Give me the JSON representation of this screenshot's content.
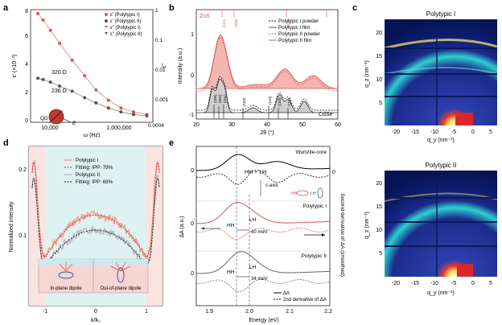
{
  "panel_labels": [
    "a",
    "b",
    "c",
    "d",
    "e"
  ],
  "a": {
    "chart_data": {
      "type": "scatter",
      "xlabel": "ω (Hz)",
      "ylabel_left": "ε′ (×10⁻³)",
      "ylabel_right": "ε″",
      "x_ticks": [
        "10,000",
        "1,000,000"
      ],
      "y_ticks": [
        "0",
        "2",
        "4",
        "6",
        "8"
      ],
      "y2_ticks": [
        "1",
        "0.1",
        "0.01",
        "0.001",
        "0.0004"
      ],
      "legend": [
        "ε′ (Polytypic I)",
        "ε′ (Polytypic II)",
        "ε″ (Polytypic I)",
        "ε″ (Polytypic II)"
      ],
      "annotations": [
        "320 D",
        "236 D",
        "QD",
        "E"
      ],
      "series": [
        {
          "name": "ε′ (Polytypic I)",
          "x": [
            6000,
            8000,
            12000,
            20000,
            40000,
            80000,
            150000,
            300000,
            600000,
            1200000,
            2500000
          ],
          "values": [
            8.4,
            7.9,
            7.1,
            6.1,
            4.8,
            3.6,
            2.5,
            1.7,
            1.1,
            0.8,
            0.6
          ]
        },
        {
          "name": "ε′ (Polytypic II)",
          "x": [
            6000,
            8000,
            12000,
            20000,
            40000,
            80000,
            150000,
            300000,
            600000,
            1200000,
            2500000
          ],
          "values": [
            3.4,
            3.3,
            3.1,
            2.8,
            2.4,
            1.9,
            1.5,
            1.1,
            0.8,
            0.6,
            0.5
          ]
        }
      ]
    }
  },
  "b": {
    "chart_data": {
      "type": "line",
      "xlabel": "2θ (°)",
      "ylabel": "Intensity (a.u.)",
      "x_ticks": [
        "20",
        "30",
        "40",
        "50",
        "60"
      ],
      "y_ticks": [
        "-1",
        "0",
        "1"
      ],
      "top_label": "ZnS",
      "bottom_label": "CdSe",
      "legend": [
        "Polytypic I powder",
        "Polytypic I film",
        "Polytypic II powder",
        "Polytypic II film"
      ],
      "peak_labels": [
        "(100)",
        "(002)",
        "(101)",
        "(102)",
        "(110)",
        "(103)",
        "(112)"
      ],
      "top_peak_labels": [
        "(111)",
        "(220)",
        "(311)"
      ]
    }
  },
  "c": {
    "top_title": "Polytypic I",
    "bottom_title": "Polytypic II",
    "ylabel": "q_z (nm⁻¹)",
    "xlabel": "q_y (nm⁻¹)",
    "y_ticks": [
      "5",
      "10",
      "15",
      "20"
    ],
    "x_ticks": [
      "-20",
      "-15",
      "-10",
      "-5",
      "0",
      "5"
    ]
  },
  "d": {
    "chart_data": {
      "type": "line",
      "xlabel": "k/k₀",
      "ylabel": "Normalized intensity",
      "x_ticks": [
        "-1",
        "0",
        "1"
      ],
      "y_ticks": [
        "0.1",
        "0.2"
      ],
      "legend": [
        "Polytypic I",
        "Fitting: IPP: 79%",
        "Polytypic II",
        "Fitting: IPP: 69%"
      ],
      "inset_labels": [
        "In-plane dipole",
        "Out-of-plane dipole"
      ]
    }
  },
  "e": {
    "chart_data": {
      "type": "line",
      "xlabel": "Energy (eV)",
      "ylabel_left": "ΔA (a.u.)",
      "ylabel_right": "Second derivative of ΔA (smoothed)",
      "x_ticks": [
        "1.9",
        "2.0",
        "2.1",
        "2.2"
      ],
      "trace_labels": [
        "Wurtzite-core",
        "Polytypic I",
        "Polytypic II"
      ],
      "annotations": [
        "HH + LH",
        "c-axis",
        "HH",
        "LH",
        "HH",
        "LH",
        "40 meV",
        "HH",
        "LH",
        "34 meV"
      ],
      "legend": [
        "ΔA",
        "2nd derivative of ΔA"
      ],
      "zero_labels": [
        "0",
        "0",
        "0",
        "0"
      ]
    }
  },
  "colors": {
    "red": "#d9534f",
    "pink": "#f4b6b0",
    "gray": "#555555",
    "teal": "#bfe6e6",
    "blue": "#3a6ab0"
  }
}
